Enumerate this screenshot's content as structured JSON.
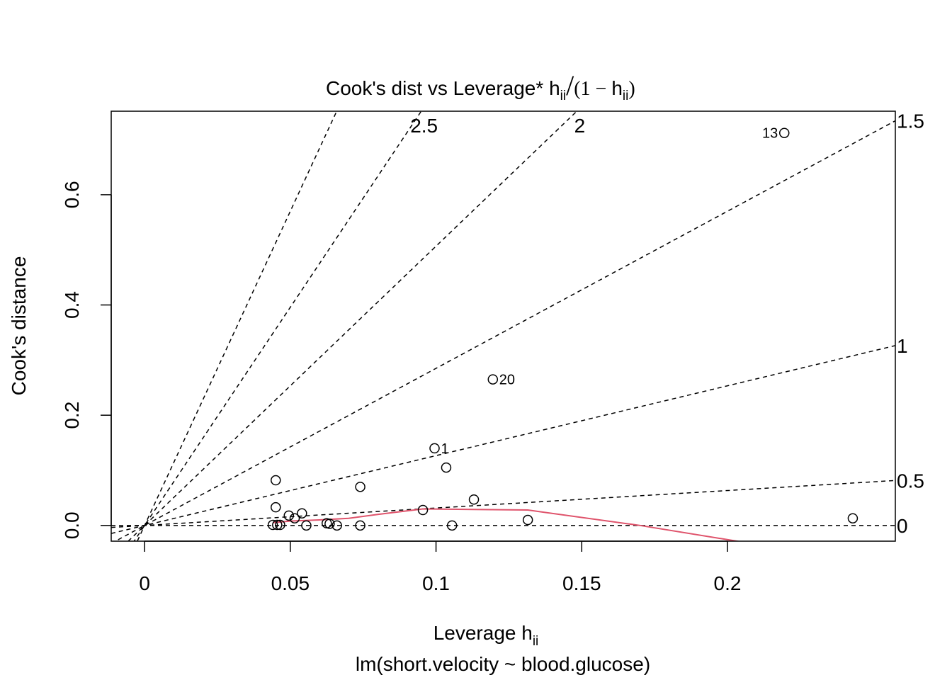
{
  "chart_data": {
    "type": "scatter",
    "title_prefix": "Cook's dist vs Leverage*",
    "title_formula": {
      "h": "h",
      "sub": "ii",
      "slash": "/",
      "open": "(1 − ",
      "close": ")"
    },
    "xlabel": "Leverage",
    "xlabel_symbol": "h",
    "xlabel_sub": "ii",
    "ylabel": "Cook's distance",
    "subtitle": "lm(short.velocity ~ blood.glucose)",
    "xlim": [
      -0.01145,
      0.2576
    ],
    "ylim": [
      -0.0285,
      0.7515
    ],
    "x_ticks": [
      {
        "value": 0,
        "label": "0"
      },
      {
        "value": 0.05,
        "label": "0.05"
      },
      {
        "value": 0.1,
        "label": "0.1"
      },
      {
        "value": 0.15,
        "label": "0.15"
      },
      {
        "value": 0.2,
        "label": "0.2"
      }
    ],
    "y_ticks": [
      {
        "value": 0.0,
        "label": "0.0"
      },
      {
        "value": 0.2,
        "label": "0.2"
      },
      {
        "value": 0.4,
        "label": "0.4"
      },
      {
        "value": 0.6,
        "label": "0.6"
      }
    ],
    "contours": [
      {
        "label": "0",
        "slope": 0
      },
      {
        "label": "0.5",
        "slope": 0.3167
      },
      {
        "label": "1",
        "slope": 1.2667
      },
      {
        "label": "1.5",
        "slope": 2.85
      },
      {
        "label": "2",
        "slope": 5.0667
      },
      {
        "label": "2.5",
        "slope": 7.9167
      },
      {
        "label": "",
        "slope": 11.4
      }
    ],
    "points": [
      {
        "x": 0.0995,
        "y": 0.14,
        "label": "1"
      },
      {
        "x": 0.1035,
        "y": 0.105,
        "label": ""
      },
      {
        "x": 0.045,
        "y": 0.082,
        "label": ""
      },
      {
        "x": 0.045,
        "y": 0.033,
        "label": ""
      },
      {
        "x": 0.0495,
        "y": 0.018,
        "label": ""
      },
      {
        "x": 0.0515,
        "y": 0.013,
        "label": ""
      },
      {
        "x": 0.054,
        "y": 0.022,
        "label": ""
      },
      {
        "x": 0.044,
        "y": 0.001,
        "label": ""
      },
      {
        "x": 0.0455,
        "y": 0.001,
        "label": ""
      },
      {
        "x": 0.0465,
        "y": 0.001,
        "label": ""
      },
      {
        "x": 0.0555,
        "y": 0.0,
        "label": ""
      },
      {
        "x": 0.0625,
        "y": 0.004,
        "label": ""
      },
      {
        "x": 0.0635,
        "y": 0.003,
        "label": ""
      },
      {
        "x": 0.066,
        "y": 0.0,
        "label": ""
      },
      {
        "x": 0.074,
        "y": 0.07,
        "label": ""
      },
      {
        "x": 0.074,
        "y": 0.0,
        "label": ""
      },
      {
        "x": 0.0955,
        "y": 0.028,
        "label": ""
      },
      {
        "x": 0.1055,
        "y": 0.0,
        "label": ""
      },
      {
        "x": 0.113,
        "y": 0.047,
        "label": ""
      },
      {
        "x": 0.1195,
        "y": 0.265,
        "label": "20"
      },
      {
        "x": 0.1315,
        "y": 0.01,
        "label": ""
      },
      {
        "x": 0.2195,
        "y": 0.712,
        "label": "13"
      },
      {
        "x": 0.243,
        "y": 0.013,
        "label": ""
      }
    ],
    "smooth_line": {
      "color": "#DF536B",
      "x": [
        0.044,
        0.05,
        0.06,
        0.07,
        0.08,
        0.0955,
        0.113,
        0.1315,
        0.17,
        0.205
      ],
      "y": [
        0.005,
        0.008,
        0.01,
        0.013,
        0.02,
        0.03,
        0.029,
        0.028,
        0.0,
        -0.03
      ]
    }
  }
}
